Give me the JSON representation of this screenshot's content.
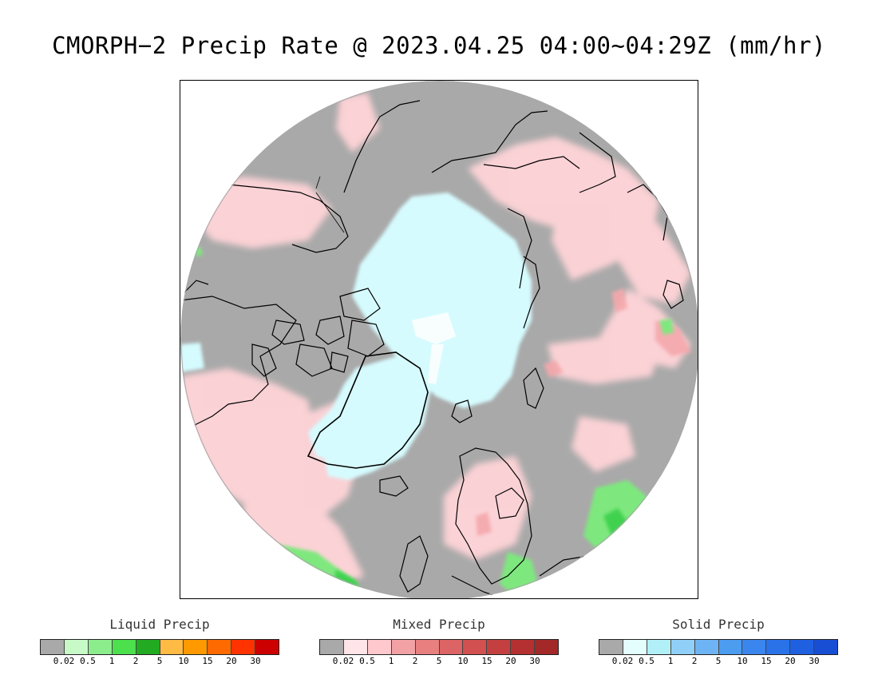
{
  "title": "CMORPH−2 Precip Rate @ 2023.04.25 04:00~04:29Z (mm/hr)",
  "map": {
    "background_gray": "#a9a9a9",
    "coast_color": "#000000"
  },
  "legends": [
    {
      "title": "Liquid Precip",
      "colors": [
        "#a9a9a9",
        "#c8fac8",
        "#8ced8c",
        "#4ce04c",
        "#22aa22",
        "#ffbb44",
        "#ff9900",
        "#ff6a00",
        "#ff3300",
        "#cc0000"
      ],
      "ticks": [
        "0.02",
        "0.5",
        "1",
        "2",
        "5",
        "10",
        "15",
        "20",
        "30"
      ]
    },
    {
      "title": "Mixed Precip",
      "colors": [
        "#a9a9a9",
        "#ffe4e8",
        "#ffc8cc",
        "#f2a2a4",
        "#e88080",
        "#dd6464",
        "#d25050",
        "#c44040",
        "#b53030",
        "#a32828"
      ],
      "ticks": [
        "0.02",
        "0.5",
        "1",
        "2",
        "5",
        "10",
        "15",
        "20",
        "30"
      ]
    },
    {
      "title": "Solid Precip",
      "colors": [
        "#a9a9a9",
        "#e4fefe",
        "#b2f0f8",
        "#90d0f8",
        "#6eb4f4",
        "#4c9cf0",
        "#3a86ee",
        "#2a72e8",
        "#1e60e0",
        "#184ed4"
      ],
      "ticks": [
        "0.02",
        "0.5",
        "1",
        "2",
        "5",
        "10",
        "15",
        "20",
        "30"
      ]
    }
  ]
}
